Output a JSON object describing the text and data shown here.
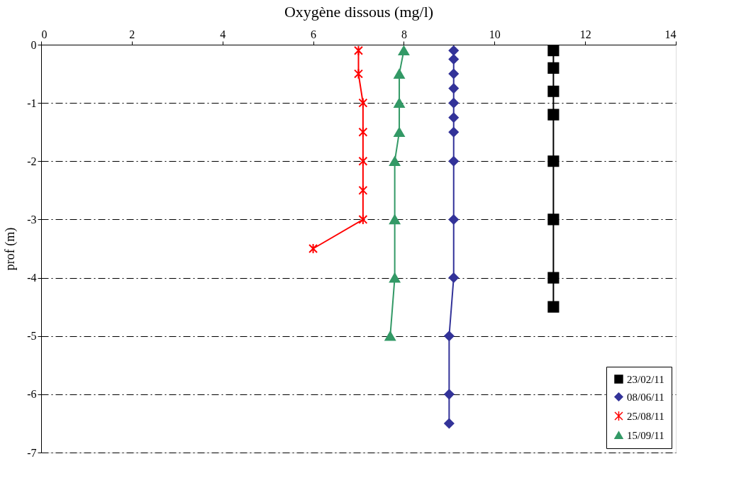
{
  "chart_data": {
    "type": "line",
    "xlabel": "Oxygène dissous (mg/l)",
    "ylabel": "prof (m)",
    "xlim": [
      0,
      14
    ],
    "xticks": [
      0,
      2,
      4,
      6,
      8,
      10,
      12,
      14
    ],
    "ylim": [
      -7,
      0
    ],
    "yticks": [
      -7,
      -6,
      -5,
      -4,
      -3,
      -2,
      -1,
      0
    ],
    "grid": "y",
    "legend": "bottom right",
    "series": [
      {
        "name": "23/02/11",
        "color": "#000000",
        "marker": "square",
        "x": [
          11.3,
          11.3,
          11.3,
          11.3,
          11.3,
          11.3,
          11.3,
          11.3
        ],
        "values": [
          -0.1,
          -0.4,
          -0.8,
          -1.2,
          -2,
          -3,
          -4,
          -4.5
        ]
      },
      {
        "name": "08/06/11",
        "color": "#333399",
        "marker": "diamond",
        "x": [
          9.1,
          9.1,
          9.1,
          9.1,
          9.1,
          9.1,
          9.1,
          9.1,
          9.1,
          9.1,
          9.0,
          9.0,
          9.0
        ],
        "values": [
          -0.1,
          -0.25,
          -0.5,
          -0.75,
          -1,
          -1.25,
          -1.5,
          -2,
          -3,
          -4,
          -5,
          -6,
          -6.5
        ]
      },
      {
        "name": "25/08/11",
        "color": "#ff0000",
        "marker": "cross",
        "x": [
          7.0,
          7.0,
          7.1,
          7.1,
          7.1,
          7.1,
          7.1,
          6.0
        ],
        "values": [
          -0.1,
          -0.5,
          -1,
          -1.5,
          -2,
          -2.5,
          -3,
          -3.5
        ]
      },
      {
        "name": "15/09/11",
        "color": "#339966",
        "marker": "triangle",
        "x": [
          8.0,
          7.9,
          7.9,
          7.9,
          7.8,
          7.8,
          7.8,
          7.7
        ],
        "values": [
          -0.1,
          -0.5,
          -1,
          -1.5,
          -2,
          -3,
          -4,
          -5
        ]
      }
    ]
  }
}
